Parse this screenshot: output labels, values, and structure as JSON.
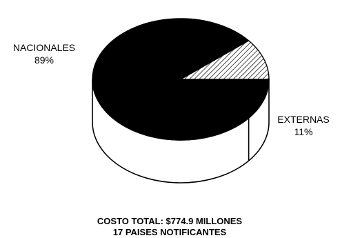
{
  "chart_data": {
    "type": "pie",
    "title": "",
    "slices": [
      {
        "name": "NACIONALES",
        "value": 89,
        "value_label": "89%",
        "fill": "#000000",
        "pattern": "solid"
      },
      {
        "name": "EXTERNAS",
        "value": 11,
        "value_label": "11%",
        "fill": "#ffffff",
        "pattern": "diagonal-hatch"
      }
    ],
    "style": "3d"
  },
  "footer": {
    "line1": "COSTO TOTAL: $774.9 MILLONES",
    "line2": "17 PAISES NOTIFICANTES"
  }
}
